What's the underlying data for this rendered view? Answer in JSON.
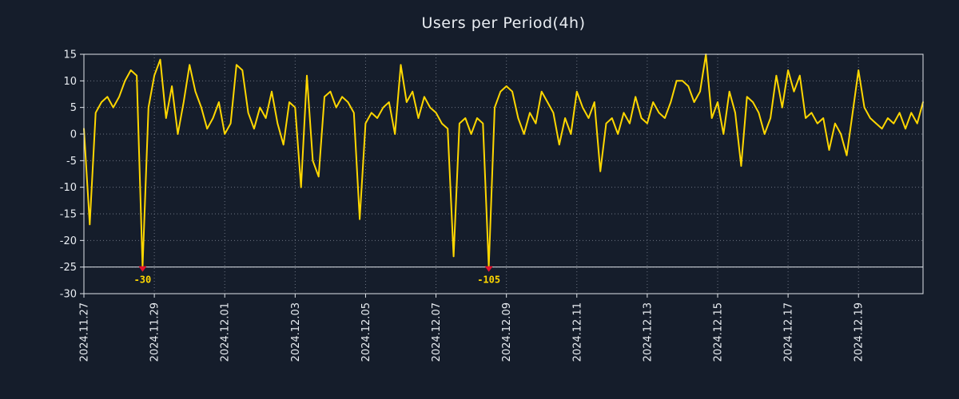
{
  "colors": {
    "background": "#151d2b",
    "line": "#ffd700",
    "grid": "#6b7280",
    "axis": "#dfe4ea",
    "text": "#e9edf2",
    "marker": "#e8112d",
    "annotation": "#ffd700"
  },
  "chart_data": {
    "type": "line",
    "title": "Users per Period(4h)",
    "xlabel": "",
    "ylabel": "",
    "legend": null,
    "grid": "dotted",
    "ylim": [
      -30,
      15
    ],
    "y_ticks": [
      15,
      10,
      5,
      0,
      -5,
      -10,
      -15,
      -20,
      -25,
      -30
    ],
    "clip_min": -25,
    "points_per_day": 6,
    "x_tick_interval_days": 2,
    "x_tick_labels": [
      "2024.11.27",
      "2024.11.29",
      "2024.12.01",
      "2024.12.03",
      "2024.12.05",
      "2024.12.07",
      "2024.12.09",
      "2024.12.11",
      "2024.12.13",
      "2024.12.15",
      "2024.12.17",
      "2024.12.19"
    ],
    "values": [
      1,
      -17,
      4,
      6,
      7,
      5,
      7,
      10,
      12,
      11,
      -30,
      5,
      11,
      14,
      3,
      9,
      0,
      6,
      13,
      8,
      5,
      1,
      3,
      6,
      0,
      2,
      13,
      12,
      4,
      1,
      5,
      3,
      8,
      2,
      -2,
      6,
      5,
      -10,
      11,
      -5,
      -8,
      7,
      8,
      5,
      7,
      6,
      4,
      -16,
      2,
      4,
      3,
      5,
      6,
      0,
      13,
      6,
      8,
      3,
      7,
      5,
      4,
      2,
      1,
      -23,
      2,
      3,
      0,
      3,
      2,
      -105,
      5,
      8,
      9,
      8,
      3,
      0,
      4,
      2,
      8,
      6,
      4,
      -2,
      3,
      0,
      8,
      5,
      3,
      6,
      -7,
      2,
      3,
      0,
      4,
      2,
      7,
      3,
      2,
      6,
      4,
      3,
      6,
      10,
      10,
      9,
      6,
      8,
      15,
      3,
      6,
      0,
      8,
      4,
      -6,
      7,
      6,
      4,
      0,
      3,
      11,
      5,
      12,
      8,
      11,
      3,
      4,
      2,
      3,
      -3,
      2,
      0,
      -4,
      4,
      12,
      5,
      3,
      2,
      1,
      3,
      2,
      4,
      1,
      4,
      2,
      6
    ],
    "annotations": [
      {
        "index": 10,
        "value": -30,
        "label": "-30"
      },
      {
        "index": 69,
        "value": -105,
        "label": "-105"
      }
    ]
  }
}
